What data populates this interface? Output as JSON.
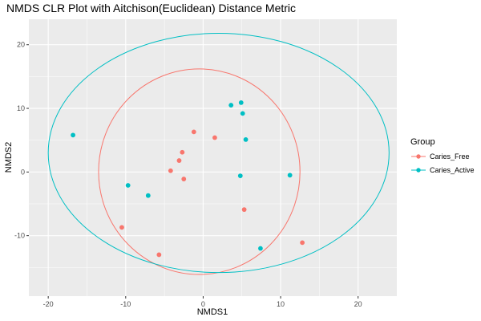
{
  "chart_data": {
    "type": "scatter",
    "title": "NMDS CLR Plot with Aitchison(Euclidean) Distance Metric",
    "xlabel": "NMDS1",
    "ylabel": "NMDS2",
    "xlim": [
      -22.5,
      25
    ],
    "ylim": [
      -19.5,
      24
    ],
    "x_ticks": [
      -20,
      -10,
      0,
      10,
      20
    ],
    "y_ticks": [
      -10,
      0,
      10,
      20
    ],
    "grid": true,
    "legend": {
      "title": "Group",
      "position": "right",
      "entries": [
        "Caries_Free",
        "Caries_Active"
      ]
    },
    "series": [
      {
        "name": "Caries_Free",
        "color": "#F8766D",
        "points": [
          [
            -1.2,
            6.3
          ],
          [
            1.5,
            5.4
          ],
          [
            -2.7,
            3.1
          ],
          [
            -3.1,
            1.8
          ],
          [
            -4.2,
            0.2
          ],
          [
            -2.5,
            -1.1
          ],
          [
            5.3,
            -5.9
          ],
          [
            -10.5,
            -8.7
          ],
          [
            -5.7,
            -13.0
          ],
          [
            12.8,
            -11.1
          ]
        ],
        "ellipse": {
          "cx": -0.5,
          "cy": 0.05,
          "rx": 13.0,
          "ry": 16.15
        }
      },
      {
        "name": "Caries_Active",
        "color": "#00BFC4",
        "points": [
          [
            -16.8,
            5.8
          ],
          [
            3.6,
            10.5
          ],
          [
            4.9,
            10.9
          ],
          [
            5.1,
            9.2
          ],
          [
            5.5,
            5.1
          ],
          [
            4.8,
            -0.6
          ],
          [
            11.2,
            -0.5
          ],
          [
            -9.7,
            -2.1
          ],
          [
            -7.1,
            -3.7
          ],
          [
            7.4,
            -12.0
          ]
        ],
        "ellipse": {
          "cx": 2.0,
          "cy": 3.0,
          "rx": 22.0,
          "ry": 18.8
        }
      }
    ]
  }
}
